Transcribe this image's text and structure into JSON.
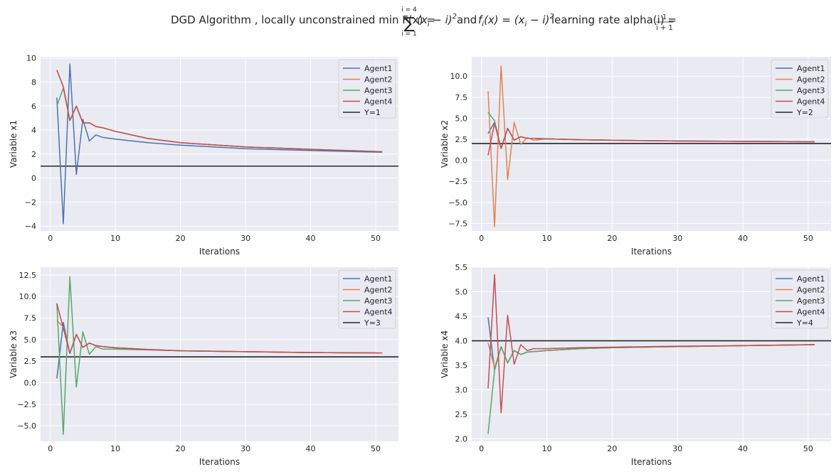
{
  "figure": {
    "title_prefix": "DGD Algorithm  , locally unconstrained  min F(x) =",
    "title_sum_upper": "i = 4",
    "title_sum_lower": "i = 1",
    "title_sum_term": "(x",
    "title_sum_term_sub": "i",
    "title_sum_term_rest": " − i)",
    "title_sum_term_sup": "2",
    "title_mid": "and",
    "title_f_name": "f",
    "title_f_sub": "i",
    "title_f_def": "(x) = (x",
    "title_f_def_sub": "i",
    "title_f_def_rest": " − i)",
    "title_f_def_sup": "2",
    "title_lr": "learning rate alpha(i) =",
    "title_lr_num": "1",
    "title_lr_den": "i + 1"
  },
  "colors": {
    "background": "#eaeaf2",
    "grid": "#ffffff",
    "Agent1": "#4c72b0",
    "Agent2": "#dd8452",
    "Agent3": "#55a868",
    "Agent4": "#c44e52",
    "reference": "#262626"
  },
  "chart_data": [
    {
      "type": "line",
      "xlabel": "Iterations",
      "ylabel": "Variable x1",
      "xlim": [
        -1.5,
        53.5
      ],
      "ylim": [
        -4.4,
        10.1
      ],
      "xticks": [
        0,
        10,
        20,
        30,
        40,
        50
      ],
      "yticks": [
        -4,
        -2,
        0,
        2,
        4,
        6,
        8,
        10
      ],
      "ytick_labels": [
        "−4",
        "−2",
        "0",
        "2",
        "4",
        "6",
        "8",
        "10"
      ],
      "grid": true,
      "legend": "top-right",
      "reference": {
        "name": "Y=1",
        "y": 1
      },
      "x": [
        1,
        2,
        3,
        4,
        5,
        6,
        7,
        8,
        10,
        15,
        20,
        30,
        40,
        51
      ],
      "series": [
        {
          "name": "Agent1",
          "values": [
            6.7,
            -3.8,
            9.5,
            0.3,
            4.9,
            3.1,
            3.6,
            3.4,
            3.25,
            2.95,
            2.75,
            2.45,
            2.3,
            2.15
          ]
        },
        {
          "name": "Agent2",
          "values": [
            9.0,
            7.6,
            4.8,
            6.0,
            4.6,
            4.6,
            4.3,
            4.2,
            3.9,
            3.3,
            2.95,
            2.6,
            2.4,
            2.2
          ]
        },
        {
          "name": "Agent3",
          "values": [
            6.0,
            7.5,
            4.8,
            6.0,
            4.6,
            4.6,
            4.3,
            4.2,
            3.9,
            3.3,
            2.95,
            2.6,
            2.4,
            2.2
          ]
        },
        {
          "name": "Agent4",
          "values": [
            9.0,
            7.6,
            4.8,
            6.0,
            4.6,
            4.6,
            4.3,
            4.2,
            3.9,
            3.3,
            2.95,
            2.6,
            2.4,
            2.2
          ]
        }
      ]
    },
    {
      "type": "line",
      "xlabel": "Iterations",
      "ylabel": "Variable x2",
      "xlim": [
        -1.5,
        53.5
      ],
      "ylim": [
        -8.4,
        12.3
      ],
      "xticks": [
        0,
        10,
        20,
        30,
        40,
        50
      ],
      "yticks": [
        -7.5,
        -5.0,
        -2.5,
        0.0,
        2.5,
        5.0,
        7.5,
        10.0
      ],
      "ytick_labels": [
        "−7.5",
        "−5.0",
        "−2.5",
        "0.0",
        "2.5",
        "5.0",
        "7.5",
        "10.0"
      ],
      "grid": true,
      "legend": "top-right",
      "reference": {
        "name": "Y=2",
        "y": 2
      },
      "x": [
        1,
        2,
        3,
        4,
        5,
        6,
        7,
        8,
        10,
        15,
        20,
        30,
        40,
        51
      ],
      "series": [
        {
          "name": "Agent1",
          "values": [
            3.2,
            4.5,
            1.4,
            3.8,
            2.4,
            2.8,
            2.6,
            2.6,
            2.55,
            2.45,
            2.4,
            2.3,
            2.25,
            2.2
          ]
        },
        {
          "name": "Agent2",
          "values": [
            8.2,
            -7.9,
            11.2,
            -2.3,
            4.5,
            1.9,
            2.7,
            2.4,
            2.55,
            2.45,
            2.4,
            2.3,
            2.25,
            2.2
          ]
        },
        {
          "name": "Agent3",
          "values": [
            5.7,
            4.7,
            1.4,
            3.8,
            2.4,
            2.8,
            2.6,
            2.6,
            2.55,
            2.45,
            2.4,
            2.3,
            2.25,
            2.2
          ]
        },
        {
          "name": "Agent4",
          "values": [
            0.6,
            4.4,
            1.4,
            3.8,
            2.4,
            2.8,
            2.6,
            2.6,
            2.55,
            2.45,
            2.4,
            2.3,
            2.25,
            2.2
          ]
        }
      ]
    },
    {
      "type": "line",
      "xlabel": "Iterations",
      "ylabel": "Variable x3",
      "xlim": [
        -1.5,
        53.5
      ],
      "ylim": [
        -6.8,
        13.4
      ],
      "xticks": [
        0,
        10,
        20,
        30,
        40,
        50
      ],
      "yticks": [
        -5.0,
        -2.5,
        0.0,
        2.5,
        5.0,
        7.5,
        10.0,
        12.5
      ],
      "ytick_labels": [
        "−5.0",
        "−2.5",
        "0.0",
        "2.5",
        "5.0",
        "7.5",
        "10.0",
        "12.5"
      ],
      "grid": true,
      "legend": "top-right",
      "reference": {
        "name": "Y=3",
        "y": 3
      },
      "x": [
        1,
        2,
        3,
        4,
        5,
        6,
        7,
        8,
        10,
        15,
        20,
        30,
        40,
        51
      ],
      "series": [
        {
          "name": "Agent1",
          "values": [
            0.5,
            7.0,
            3.4,
            5.6,
            4.1,
            4.6,
            4.3,
            4.2,
            4.05,
            3.85,
            3.7,
            3.6,
            3.5,
            3.45
          ]
        },
        {
          "name": "Agent2",
          "values": [
            7.2,
            6.5,
            3.4,
            5.6,
            4.1,
            4.6,
            4.3,
            4.2,
            4.05,
            3.85,
            3.7,
            3.6,
            3.5,
            3.45
          ]
        },
        {
          "name": "Agent3",
          "values": [
            9.2,
            -6.0,
            12.3,
            -0.5,
            5.9,
            3.3,
            4.2,
            3.9,
            3.9,
            3.8,
            3.7,
            3.6,
            3.5,
            3.45
          ]
        },
        {
          "name": "Agent4",
          "values": [
            9.2,
            6.3,
            3.4,
            5.6,
            4.1,
            4.6,
            4.3,
            4.2,
            4.05,
            3.85,
            3.7,
            3.6,
            3.5,
            3.45
          ]
        }
      ]
    },
    {
      "type": "line",
      "xlabel": "Iterations",
      "ylabel": "Variable x4",
      "xlim": [
        -1.5,
        53.5
      ],
      "ylim": [
        1.95,
        5.5
      ],
      "xticks": [
        0,
        10,
        20,
        30,
        40,
        50
      ],
      "yticks": [
        2.0,
        2.5,
        3.0,
        3.5,
        4.0,
        4.5,
        5.0,
        5.5
      ],
      "ytick_labels": [
        "2.0",
        "2.5",
        "3.0",
        "3.5",
        "4.0",
        "4.5",
        "5.0",
        "5.5"
      ],
      "grid": true,
      "legend": "top-right",
      "reference": {
        "name": "Y=4",
        "y": 4
      },
      "x": [
        1,
        2,
        3,
        4,
        5,
        6,
        7,
        8,
        10,
        15,
        20,
        30,
        40,
        51
      ],
      "series": [
        {
          "name": "Agent1",
          "values": [
            4.48,
            3.4,
            3.88,
            3.55,
            3.8,
            3.72,
            3.77,
            3.78,
            3.8,
            3.84,
            3.86,
            3.88,
            3.9,
            3.92
          ]
        },
        {
          "name": "Agent2",
          "values": [
            3.96,
            3.45,
            3.88,
            3.55,
            3.8,
            3.72,
            3.77,
            3.78,
            3.8,
            3.84,
            3.86,
            3.88,
            3.9,
            3.92
          ]
        },
        {
          "name": "Agent3",
          "values": [
            2.1,
            3.4,
            3.88,
            3.55,
            3.8,
            3.72,
            3.77,
            3.78,
            3.8,
            3.84,
            3.86,
            3.88,
            3.9,
            3.92
          ]
        },
        {
          "name": "Agent4",
          "values": [
            3.03,
            5.35,
            2.53,
            4.52,
            3.52,
            3.92,
            3.8,
            3.84,
            3.84,
            3.86,
            3.87,
            3.89,
            3.9,
            3.92
          ]
        }
      ]
    }
  ]
}
